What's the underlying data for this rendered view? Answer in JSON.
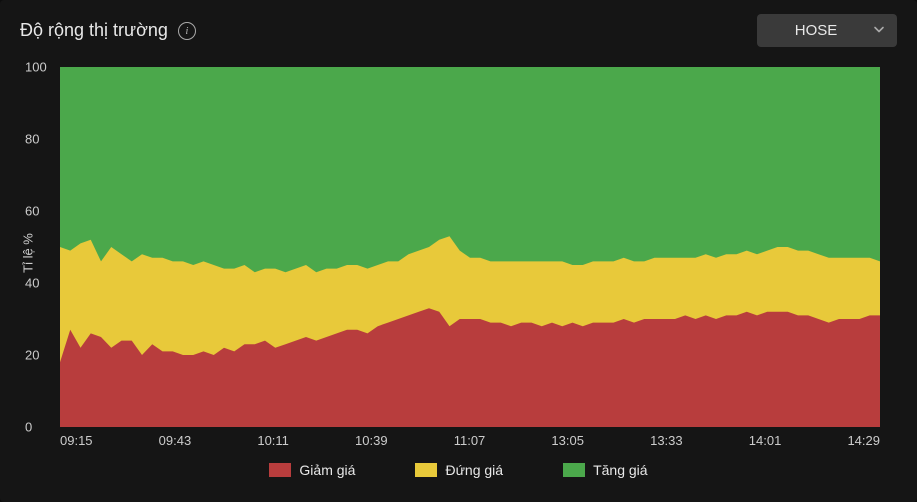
{
  "header": {
    "title": "Độ rộng thị trường",
    "info_tooltip": "i",
    "dropdown_selected": "HOSE"
  },
  "chart": {
    "type": "area-stacked-100",
    "ylabel": "Tỉ lệ %",
    "ylim": [
      0,
      100
    ],
    "ytick_step": 20,
    "yticks": [
      0,
      20,
      40,
      60,
      80,
      100
    ],
    "xticks": [
      "09:15",
      "09:43",
      "10:11",
      "10:39",
      "11:07",
      "13:05",
      "13:33",
      "14:01",
      "14:29"
    ],
    "background_color": "#151515",
    "grid_color": "#3a3a3a",
    "text_color": "#ccc",
    "font_size_ticks": 13,
    "font_size_label": 13,
    "series": [
      {
        "key": "down",
        "label": "Giảm giá",
        "color": "#b83d3d",
        "values": [
          18,
          27,
          22,
          26,
          25,
          22,
          24,
          24,
          20,
          23,
          21,
          21,
          20,
          20,
          21,
          20,
          22,
          21,
          23,
          23,
          24,
          22,
          23,
          24,
          25,
          24,
          25,
          26,
          27,
          27,
          26,
          28,
          29,
          30,
          31,
          32,
          33,
          32,
          28,
          30,
          30,
          30,
          29,
          29,
          28,
          29,
          29,
          28,
          29,
          28,
          29,
          28,
          29,
          29,
          29,
          30,
          29,
          30,
          30,
          30,
          30,
          31,
          30,
          31,
          30,
          31,
          31,
          32,
          31,
          32,
          32,
          32,
          31,
          31,
          30,
          29,
          30,
          30,
          30,
          31,
          31
        ]
      },
      {
        "key": "flat",
        "label": "Đứng giá",
        "color": "#e8c93a",
        "values": [
          50,
          49,
          51,
          52,
          46,
          50,
          48,
          46,
          48,
          47,
          47,
          46,
          46,
          45,
          46,
          45,
          44,
          44,
          45,
          43,
          44,
          44,
          43,
          44,
          45,
          43,
          44,
          44,
          45,
          45,
          44,
          45,
          46,
          46,
          48,
          49,
          50,
          52,
          53,
          49,
          47,
          47,
          46,
          46,
          46,
          46,
          46,
          46,
          46,
          46,
          45,
          45,
          46,
          46,
          46,
          47,
          46,
          46,
          47,
          47,
          47,
          47,
          47,
          48,
          47,
          48,
          48,
          49,
          48,
          49,
          50,
          50,
          49,
          49,
          48,
          47,
          47,
          47,
          47,
          47,
          46
        ]
      },
      {
        "key": "up",
        "label": "Tăng giá",
        "color": "#4ba84b",
        "values": [
          100,
          100,
          100,
          100,
          100,
          100,
          100,
          100,
          100,
          100,
          100,
          100,
          100,
          100,
          100,
          100,
          100,
          100,
          100,
          100,
          100,
          100,
          100,
          100,
          100,
          100,
          100,
          100,
          100,
          100,
          100,
          100,
          100,
          100,
          100,
          100,
          100,
          100,
          100,
          100,
          100,
          100,
          100,
          100,
          100,
          100,
          100,
          100,
          100,
          100,
          100,
          100,
          100,
          100,
          100,
          100,
          100,
          100,
          100,
          100,
          100,
          100,
          100,
          100,
          100,
          100,
          100,
          100,
          100,
          100,
          100,
          100,
          100,
          100,
          100,
          100,
          100,
          100,
          100,
          100,
          100
        ]
      }
    ],
    "legend": [
      {
        "label": "Giảm giá",
        "color": "#b83d3d"
      },
      {
        "label": "Đứng giá",
        "color": "#e8c93a"
      },
      {
        "label": "Tăng giá",
        "color": "#4ba84b"
      }
    ]
  }
}
